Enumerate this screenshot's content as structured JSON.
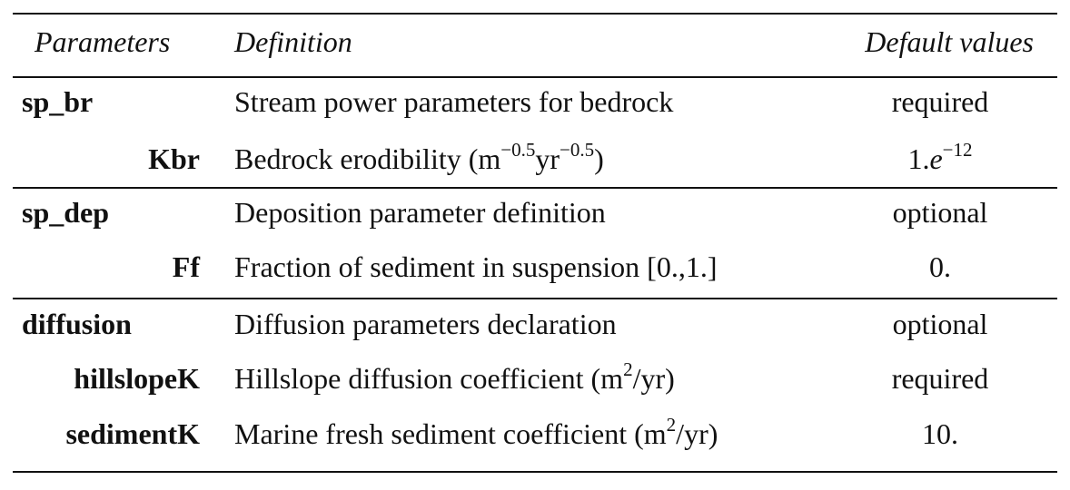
{
  "header": {
    "parameters": "Parameters",
    "definition": "Definition",
    "default_values": "Default values"
  },
  "rows": [
    {
      "param": "sp_br",
      "definition": "Stream power parameters for bedrock",
      "default": "required"
    },
    {
      "param": "Kbr",
      "definition_pre": "Bedrock erodibility (m",
      "exp1": "−0.5",
      "definition_mid": "yr",
      "exp2": "−0.5",
      "definition_post": ")",
      "default_pre": "1.",
      "default_math": "e",
      "default_exp": "−12"
    },
    {
      "param": "sp_dep",
      "definition": "Deposition parameter definition",
      "default": "optional"
    },
    {
      "param": "Ff",
      "definition": "Fraction of sediment in suspension [0.,1.]",
      "default": "0."
    },
    {
      "param": "diffusion",
      "definition": "Diffusion parameters declaration",
      "default": "optional"
    },
    {
      "param": "hillslopeK",
      "definition_pre": "Hillslope diffusion coefficient (m",
      "exp": "2",
      "definition_post": "/yr)",
      "default": "required"
    },
    {
      "param": "sedimentK",
      "definition_pre": "Marine fresh sediment coefficient (m",
      "exp": "2",
      "definition_post": "/yr)",
      "default": "10."
    }
  ]
}
